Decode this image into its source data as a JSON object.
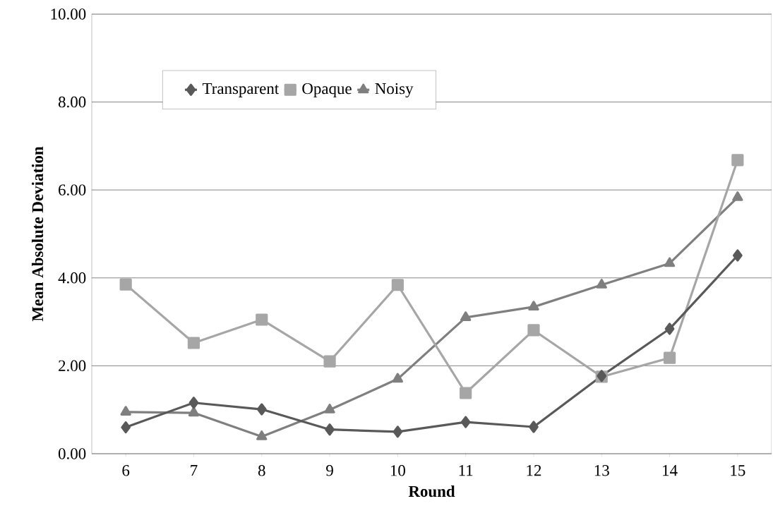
{
  "chart_data": {
    "type": "line",
    "xlabel": "Round",
    "ylabel": "Mean Absolute Deviation",
    "categories": [
      "6",
      "7",
      "8",
      "9",
      "10",
      "11",
      "12",
      "13",
      "14",
      "15"
    ],
    "series": [
      {
        "name": "Transparent",
        "color": "#595959",
        "marker": "diamond",
        "values": [
          0.6,
          1.16,
          1.01,
          0.55,
          0.5,
          0.72,
          0.61,
          1.77,
          2.84,
          4.51
        ]
      },
      {
        "name": "Opaque",
        "color": "#a6a6a6",
        "marker": "square",
        "values": [
          3.85,
          2.52,
          3.05,
          2.1,
          3.84,
          1.38,
          2.81,
          1.75,
          2.18,
          6.68
        ]
      },
      {
        "name": "Noisy",
        "color": "#7f7f7f",
        "marker": "triangle",
        "values": [
          0.95,
          0.93,
          0.39,
          1.0,
          1.7,
          3.1,
          3.34,
          3.84,
          4.33,
          5.83
        ]
      }
    ],
    "ylim": [
      0,
      10
    ],
    "yticks": [
      {
        "value": 0,
        "label": "0.00"
      },
      {
        "value": 2,
        "label": "2.00"
      },
      {
        "value": 4,
        "label": "4.00"
      },
      {
        "value": 6,
        "label": "6.00"
      },
      {
        "value": 8,
        "label": "8.00"
      },
      {
        "value": 10,
        "label": "10.00"
      }
    ],
    "grid": "y",
    "legend": "top",
    "line_style": "solid"
  }
}
